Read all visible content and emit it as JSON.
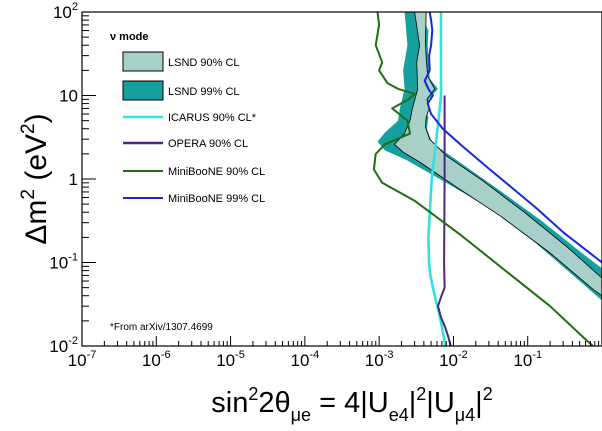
{
  "chart_data": {
    "type": "line",
    "x_scale": "log",
    "y_scale": "log",
    "xlim": [
      1e-07,
      1
    ],
    "ylim": [
      0.01,
      100
    ],
    "x_ticks": [
      {
        "value": 1e-07,
        "base": "10",
        "exp": "-7"
      },
      {
        "value": 1e-06,
        "base": "10",
        "exp": "-6"
      },
      {
        "value": 1e-05,
        "base": "10",
        "exp": "-5"
      },
      {
        "value": 0.0001,
        "base": "10",
        "exp": "-4"
      },
      {
        "value": 0.001,
        "base": "10",
        "exp": "-3"
      },
      {
        "value": 0.01,
        "base": "10",
        "exp": "-2"
      },
      {
        "value": 0.1,
        "base": "10",
        "exp": "-1"
      }
    ],
    "y_ticks": [
      {
        "value": 100,
        "base": "10",
        "exp": "2"
      },
      {
        "value": 10,
        "base": "10",
        "exp": ""
      },
      {
        "value": 1,
        "base": "1",
        "exp": ""
      },
      {
        "value": 0.1,
        "base": "10",
        "exp": "-1"
      },
      {
        "value": 0.01,
        "base": "10",
        "exp": "-2"
      }
    ],
    "xlabel": {
      "p1": "sin",
      "s1": "2",
      "p2": "2θ",
      "b1": "μe",
      "p3": " = 4|U",
      "b2": "e4",
      "p4": "|",
      "s2": "2",
      "p5": "|U",
      "b3": "μ4",
      "p6": "|",
      "s3": "2"
    },
    "ylabel": {
      "p1": "Δm",
      "s1": "2",
      "p2": " (eV",
      "s2": "2",
      "p3": ")"
    },
    "legend": {
      "title": "ν mode",
      "position": "top-left",
      "entries": [
        {
          "label": "LSND 90% CL",
          "kind": "box",
          "fill": "#a9cfc9",
          "stroke": "#000000"
        },
        {
          "label": "LSND 99% CL",
          "kind": "box",
          "fill": "#15a0a0",
          "stroke": "#000000"
        },
        {
          "label": "ICARUS 90% CL*",
          "kind": "line",
          "color": "#33e0dc"
        },
        {
          "label": "OPERA 90% CL",
          "kind": "line",
          "color": "#4a2a7c"
        },
        {
          "label": "MiniBooNE 90% CL",
          "kind": "line",
          "color": "#1f6e0e"
        },
        {
          "label": "MiniBooNE 99% CL",
          "kind": "line",
          "color": "#1428e0"
        }
      ]
    },
    "annotation": "*From arXiv/1307.4699",
    "series": [
      {
        "name": "ICARUS 90% CL*",
        "color": "#33e0dc",
        "x": [
          0.0068,
          0.0068,
          0.0068,
          0.0063,
          0.0051,
          0.0046,
          0.0047,
          0.0049,
          0.0053,
          0.0058,
          0.0064,
          0.007,
          0.0078
        ],
        "y": [
          100,
          20,
          10,
          5,
          1,
          0.2,
          0.1,
          0.07,
          0.05,
          0.035,
          0.025,
          0.017,
          0.01
        ]
      },
      {
        "name": "OPERA 90% CL",
        "color": "#4a2a7c",
        "x": [
          0.0076,
          0.0076,
          0.0076,
          0.0075,
          0.0076,
          0.0069,
          0.0062,
          0.0068,
          0.0077,
          0.0085,
          0.0092
        ],
        "y": [
          10,
          2,
          1,
          0.1,
          0.05,
          0.04,
          0.03,
          0.022,
          0.017,
          0.013,
          0.01
        ]
      },
      {
        "name": "MiniBooNE 99% CL",
        "color": "#1428e0",
        "x": [
          0.0048,
          0.005,
          0.0052,
          0.005,
          0.0047,
          0.0048,
          0.0041,
          0.0046,
          0.0053,
          0.0045,
          0.005,
          0.0072,
          0.013,
          0.028,
          0.06,
          0.13,
          0.3,
          1.0
        ],
        "y": [
          100,
          80,
          60,
          40,
          30,
          20,
          15,
          12,
          10,
          8,
          6,
          4,
          2.5,
          1.4,
          0.8,
          0.45,
          0.23,
          0.1
        ]
      },
      {
        "name": "MiniBooNE 90% CL",
        "color": "#1f6e0e",
        "x": [
          0.00095,
          0.001,
          0.0009,
          0.0011,
          0.001,
          0.0013,
          0.0018,
          0.003,
          0.0025,
          0.0015,
          0.0024,
          0.0026,
          0.0012,
          0.0009,
          0.00085,
          0.0011,
          0.003,
          0.012,
          0.05,
          0.2,
          0.6,
          1.0
        ],
        "y": [
          100,
          70,
          40,
          25,
          20,
          14,
          12,
          10.5,
          9,
          7,
          5,
          3.5,
          2.6,
          2,
          1.3,
          0.9,
          0.55,
          0.22,
          0.08,
          0.03,
          0.012,
          0.008
        ]
      }
    ],
    "regions": [
      {
        "name": "LSND 99% CL",
        "color": "#15a0a0",
        "x": [
          0.0022,
          0.0024,
          0.0021,
          0.0022,
          0.0019,
          0.0018,
          0.0012,
          0.00095,
          0.0012,
          0.0023,
          0.008,
          0.03,
          0.12,
          0.5,
          1.0,
          1.0,
          0.6,
          0.15,
          0.04,
          0.012,
          0.0052,
          0.0044,
          0.0046,
          0.0044,
          0.0048,
          0.0046,
          0.0062,
          0.0048,
          0.0046,
          0.0045,
          0.0046,
          0.0035
        ],
        "y": [
          100,
          40,
          20,
          12,
          7,
          5,
          3.6,
          2.8,
          2.2,
          1.7,
          0.9,
          0.45,
          0.18,
          0.06,
          0.035,
          0.085,
          0.12,
          0.32,
          0.75,
          1.6,
          2.7,
          4,
          5.5,
          6,
          7,
          9,
          12,
          16,
          25,
          40,
          60,
          100
        ]
      },
      {
        "name": "LSND 90% CL",
        "color": "#a9cfc9",
        "x": [
          0.003,
          0.0035,
          0.0032,
          0.0033,
          0.0028,
          0.0026,
          0.0022,
          0.0016,
          0.0021,
          0.0035,
          0.011,
          0.045,
          0.2,
          0.75,
          1.0,
          1.0,
          0.35,
          0.09,
          0.025,
          0.008,
          0.0048,
          0.0042,
          0.0043,
          0.0047,
          0.0044,
          0.0056,
          0.0045,
          0.0043,
          0.0042,
          0.0043
        ],
        "y": [
          100,
          40,
          25,
          12,
          7,
          5,
          3.5,
          2.6,
          2.1,
          1.6,
          0.8,
          0.35,
          0.13,
          0.048,
          0.04,
          0.065,
          0.15,
          0.4,
          0.95,
          1.9,
          3,
          4.2,
          5.5,
          7,
          9,
          12,
          17,
          28,
          45,
          100
        ]
      }
    ]
  }
}
